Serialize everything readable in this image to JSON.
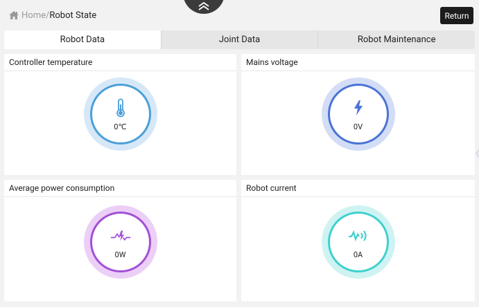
{
  "header": {
    "breadcrumb_home": "Home",
    "breadcrumb_separator": "/",
    "breadcrumb_current": "Robot State",
    "return_label": "Return",
    "collapse_icon": "double-chevron-up-icon"
  },
  "tabs": [
    {
      "label": "Robot Data",
      "active": true
    },
    {
      "label": "Joint Data",
      "active": false
    },
    {
      "label": "Robot Maintenance",
      "active": false
    }
  ],
  "cards": {
    "controller_temperature": {
      "title": "Controller temperature",
      "value": "0℃",
      "icon": "thermometer-icon",
      "color": "#4a9fd8",
      "ring": "#cfe4f7"
    },
    "mains_voltage": {
      "title": "Mains voltage",
      "value": "0V",
      "icon": "lightning-icon",
      "color": "#4a73d6",
      "ring": "#cbd7f4"
    },
    "average_power": {
      "title": "Average power consumption",
      "value": "0W",
      "icon": "power-pulse-icon",
      "color": "#a24fd6",
      "ring": "#e6c9f5"
    },
    "robot_current": {
      "title": "Robot current",
      "value": "0A",
      "icon": "current-wave-icon",
      "color": "#3fd0cf",
      "ring": "#c9f1f0"
    }
  }
}
